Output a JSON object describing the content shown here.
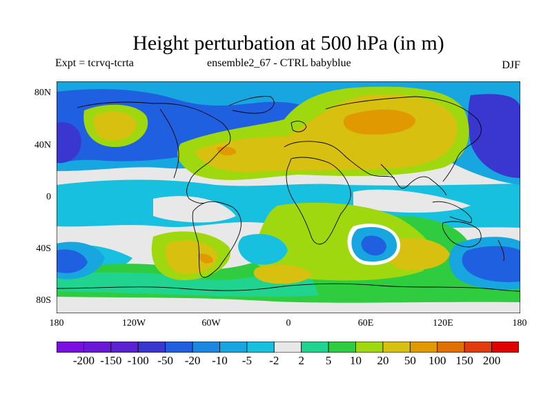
{
  "title": "Height perturbation at 500 hPa (in m)",
  "subtitle": {
    "left": "Expt = tcrvq-tcrta",
    "center": "ensemble2_67 - CTRL babyblue",
    "right": "DJF"
  },
  "axes": {
    "lat_labels": [
      "80N",
      "40N",
      "0",
      "40S",
      "80S"
    ],
    "lon_labels": [
      "180",
      "120W",
      "60W",
      "0",
      "60E",
      "120E",
      "180"
    ]
  },
  "colorbar": {
    "colors": [
      "#7a10e0",
      "#6a18d8",
      "#5a22d0",
      "#3a36d0",
      "#1e60e0",
      "#1a88e0",
      "#18a6e0",
      "#18c0e0",
      "#e8e8e8",
      "#20d490",
      "#30cc40",
      "#a0d810",
      "#d8c010",
      "#e09a00",
      "#e07000",
      "#e03c10",
      "#e00000"
    ],
    "labels": [
      "-200",
      "-150",
      "-100",
      "-50",
      "-20",
      "-10",
      "-5",
      "-2",
      "2",
      "5",
      "10",
      "20",
      "50",
      "100",
      "150",
      "200"
    ]
  },
  "map": {
    "background_color": "#e8e8e8",
    "regions": [
      {
        "label": "north-pacific-low",
        "value": -20
      },
      {
        "label": "north-pacific-high",
        "value": 50
      },
      {
        "label": "north-america-low",
        "value": -20
      },
      {
        "label": "atlantic-eurasia-high",
        "value": 20
      },
      {
        "label": "siberia-high-core",
        "value": 50
      },
      {
        "label": "west-pacific-low",
        "value": -50
      },
      {
        "label": "tropical-band-low",
        "value": -5
      },
      {
        "label": "south-indian-ring-low",
        "value": -20
      },
      {
        "label": "south-atlantic-high",
        "value": 50
      },
      {
        "label": "south-pacific-low",
        "value": -20
      },
      {
        "label": "southern-ocean-high",
        "value": 10
      }
    ]
  }
}
